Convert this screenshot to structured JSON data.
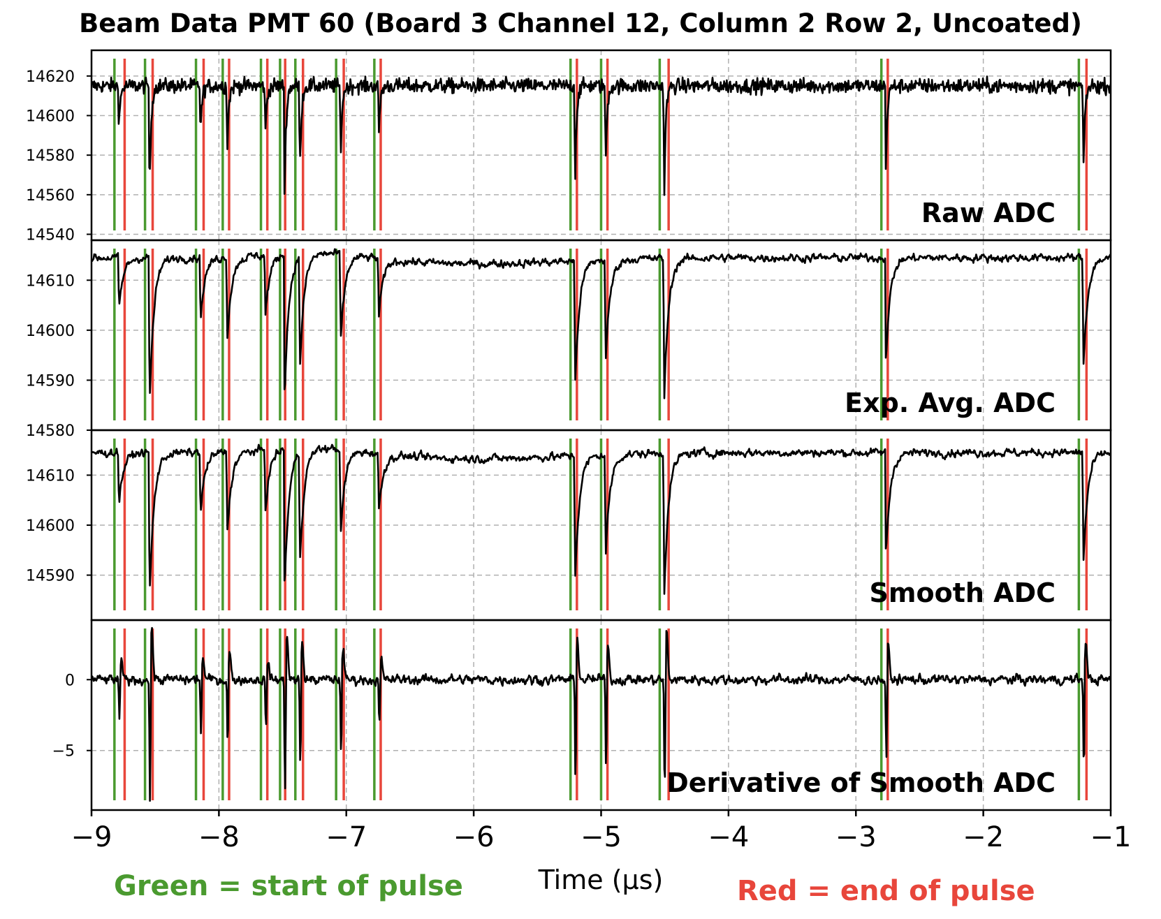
{
  "chart_data": {
    "type": "line",
    "title": "Beam Data PMT 60 (Board 3 Channel 12, Column 2 Row 2, Uncoated)",
    "xlabel": "Time (μs)",
    "xlim": [
      -9,
      -1
    ],
    "x_ticks": [
      "−9",
      "−8",
      "−7",
      "−6",
      "−5",
      "−4",
      "−3",
      "−2",
      "−1"
    ],
    "grid": true,
    "legend_notes": {
      "green": "Green = start of pulse",
      "red": "Red = end of pulse"
    },
    "colors": {
      "trace": "#000000",
      "start": "#4a9a2f",
      "end": "#e8463b",
      "grid": "#b0b0b0"
    },
    "pulses": [
      {
        "start": -8.82,
        "end": -8.74,
        "amp": 0.35
      },
      {
        "start": -8.58,
        "end": -8.52,
        "amp": 1.0
      },
      {
        "start": -8.18,
        "end": -8.12,
        "amp": 0.42
      },
      {
        "start": -7.97,
        "end": -7.92,
        "amp": 0.55
      },
      {
        "start": -7.67,
        "end": -7.62,
        "amp": 0.4
      },
      {
        "start": -7.52,
        "end": -7.48,
        "amp": 0.95
      },
      {
        "start": -7.4,
        "end": -7.34,
        "amp": 0.75
      },
      {
        "start": -7.08,
        "end": -7.02,
        "amp": 0.6
      },
      {
        "start": -6.78,
        "end": -6.73,
        "amp": 0.4
      },
      {
        "start": -5.24,
        "end": -5.19,
        "amp": 0.85
      },
      {
        "start": -5.0,
        "end": -4.95,
        "amp": 0.7
      },
      {
        "start": -4.54,
        "end": -4.47,
        "amp": 0.95
      },
      {
        "start": -2.8,
        "end": -2.75,
        "amp": 0.7
      },
      {
        "start": -1.25,
        "end": -1.19,
        "amp": 0.75
      }
    ],
    "panels": [
      {
        "label": "Raw ADC",
        "ylim": [
          14537,
          14633
        ],
        "baseline": 14615,
        "noise": 3.2,
        "depth": 62,
        "yticks": [
          14620,
          14600,
          14580,
          14560,
          14540
        ]
      },
      {
        "label": "Exp. Avg. ADC",
        "ylim": [
          14580,
          14618
        ],
        "baseline": 14614.5,
        "noise": 0.8,
        "depth": 30,
        "yticks": [
          14610,
          14600,
          14590,
          14580
        ]
      },
      {
        "label": "Smooth ADC",
        "ylim": [
          14581,
          14619
        ],
        "baseline": 14614.5,
        "noise": 0.8,
        "depth": 30,
        "yticks": [
          14610,
          14600,
          14590
        ]
      },
      {
        "label": "Derivative of Smooth ADC",
        "ylim": [
          -9.2,
          4.2
        ],
        "baseline": 0,
        "noise": 0.35,
        "depth": 8.5,
        "yticks": [
          0,
          -5
        ],
        "derivative": true
      }
    ]
  }
}
